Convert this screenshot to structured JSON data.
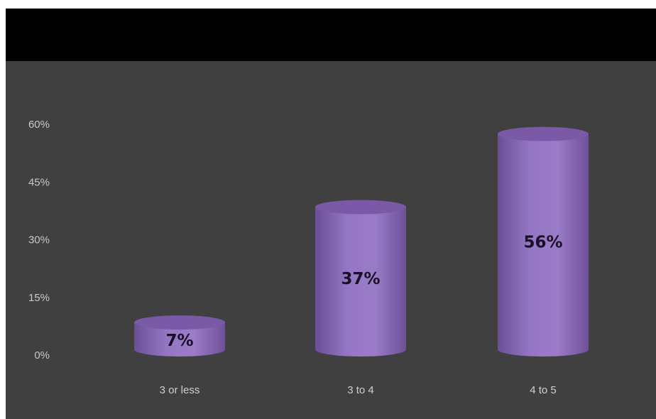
{
  "chart_data": {
    "type": "bar",
    "style": "3d-cylinder",
    "categories": [
      "3 or less",
      "3 to 4",
      "4 to 5"
    ],
    "values": [
      7,
      37,
      56
    ],
    "data_labels": [
      "7%",
      "37%",
      "56%"
    ],
    "yticks": [
      "0%",
      "15%",
      "30%",
      "45%",
      "60%"
    ],
    "ylim": [
      0,
      60
    ],
    "grid": false,
    "legend": "none",
    "colors": {
      "bar_body": "#8a6ab8",
      "bar_top": "#7a5aa6",
      "background": "#404040",
      "header": "#000000"
    }
  }
}
